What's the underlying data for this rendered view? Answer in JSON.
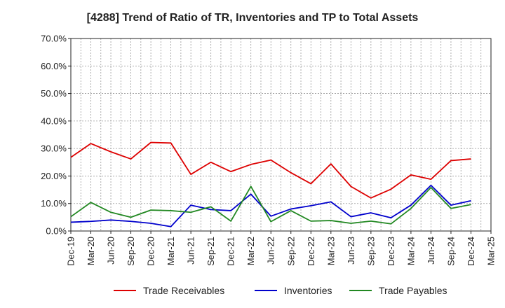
{
  "chart_data": {
    "type": "line",
    "title": "[4288]  Trend of Ratio of TR, Inventories and TP to Total Assets",
    "xlabel": "",
    "ylabel": "",
    "ylim": [
      0,
      70
    ],
    "y_ticks": [
      "0.0%",
      "10.0%",
      "20.0%",
      "30.0%",
      "40.0%",
      "50.0%",
      "60.0%",
      "70.0%"
    ],
    "x_ticks": [
      "Dec-19",
      "Mar-20",
      "Jun-20",
      "Sep-20",
      "Dec-20",
      "Mar-21",
      "Jun-21",
      "Sep-21",
      "Dec-21",
      "Mar-22",
      "Jun-22",
      "Sep-22",
      "Dec-22",
      "Mar-23",
      "Jun-23",
      "Sep-23",
      "Dec-23",
      "Mar-24",
      "Jun-24",
      "Sep-24",
      "Dec-24",
      "Mar-25"
    ],
    "categories": [
      "Dec-19",
      "Mar-20",
      "Jun-20",
      "Sep-20",
      "Dec-20",
      "Mar-21",
      "Jun-21",
      "Sep-21",
      "Dec-21",
      "Mar-22",
      "Jun-22",
      "Sep-22",
      "Dec-22",
      "Mar-23",
      "Jun-23",
      "Sep-23",
      "Dec-23",
      "Mar-24",
      "Jun-24",
      "Sep-24",
      "Dec-24"
    ],
    "grid": true,
    "legend_position": "bottom",
    "series": [
      {
        "name": "Trade Receivables",
        "color": "#dd0000",
        "values": [
          26.8,
          31.8,
          28.8,
          26.2,
          32.2,
          32.0,
          20.6,
          25.0,
          21.6,
          24.2,
          25.8,
          21.2,
          17.2,
          24.4,
          16.2,
          12.0,
          15.2,
          20.4,
          18.8,
          25.6,
          26.2
        ]
      },
      {
        "name": "Inventories",
        "color": "#0000cc",
        "values": [
          3.2,
          3.5,
          4.0,
          3.5,
          2.8,
          1.6,
          9.4,
          7.8,
          7.4,
          13.4,
          5.4,
          8.0,
          9.2,
          10.6,
          5.2,
          6.6,
          4.8,
          9.4,
          16.6,
          9.4,
          11.0
        ]
      },
      {
        "name": "Trade Payables",
        "color": "#228822",
        "values": [
          5.2,
          10.4,
          6.8,
          5.0,
          7.6,
          7.4,
          6.8,
          8.8,
          3.6,
          16.2,
          3.4,
          7.4,
          3.6,
          3.8,
          2.8,
          3.6,
          2.6,
          8.2,
          15.8,
          8.2,
          9.6
        ]
      }
    ]
  }
}
